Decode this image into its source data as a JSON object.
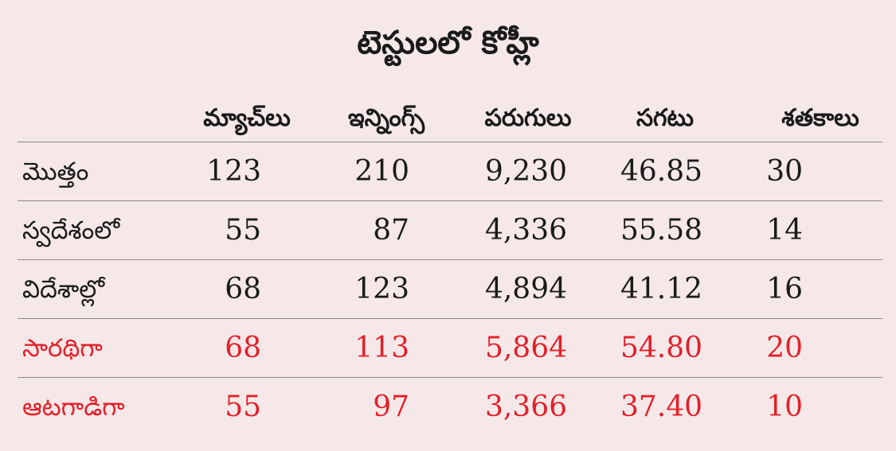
{
  "chart_data": {
    "type": "table",
    "title": "టెస్టులలో కోహ్లీ",
    "columns": [
      "మ్యాచ్‌లు",
      "ఇన్నింగ్స్",
      "పరుగులు",
      "సగటు",
      "శతకాలు"
    ],
    "rows": [
      {
        "label": "మొత్తం",
        "values": [
          "123",
          "210",
          "9,230",
          "46.85",
          "30"
        ],
        "highlight": false
      },
      {
        "label": "స్వదేశంలో",
        "values": [
          "55",
          "87",
          "4,336",
          "55.58",
          "14"
        ],
        "highlight": false
      },
      {
        "label": "విదేశాల్లో",
        "values": [
          "68",
          "123",
          "4,894",
          "41.12",
          "16"
        ],
        "highlight": false
      },
      {
        "label": "సారథిగా",
        "values": [
          "68",
          "113",
          "5,864",
          "54.80",
          "20"
        ],
        "highlight": true
      },
      {
        "label": "ఆటగాడిగా",
        "values": [
          "55",
          "97",
          "3,366",
          "37.40",
          "10"
        ],
        "highlight": true
      }
    ],
    "colors": {
      "text": "#1a1a1a",
      "highlight": "#e3202a",
      "background": "#f6e8e8",
      "rule": "#8a8a8a"
    }
  }
}
